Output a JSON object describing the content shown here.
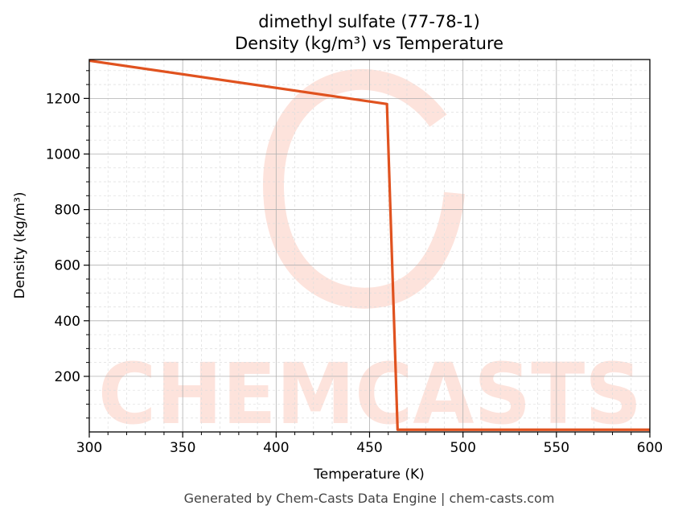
{
  "chart_data": {
    "type": "line",
    "title": "dimethyl sulfate (77-78-1)",
    "subtitle": "Density (kg/m³) vs Temperature",
    "xlabel": "Temperature (K)",
    "ylabel": "Density (kg/m³)",
    "xlim": [
      300,
      600
    ],
    "ylim": [
      0,
      1340
    ],
    "xticks": [
      300,
      350,
      400,
      450,
      500,
      550,
      600
    ],
    "yticks": [
      200,
      400,
      600,
      800,
      1000,
      1200
    ],
    "grid": true,
    "series": [
      {
        "color": "#e0521f",
        "x": [
          300,
          459.3,
          465,
          600
        ],
        "y": [
          1336,
          1180,
          8,
          8
        ]
      }
    ],
    "watermark": "CHEMCASTS",
    "watermark_color": "#fde3dc",
    "footer": "Generated by Chem-Casts Data Engine | chem-casts.com"
  }
}
